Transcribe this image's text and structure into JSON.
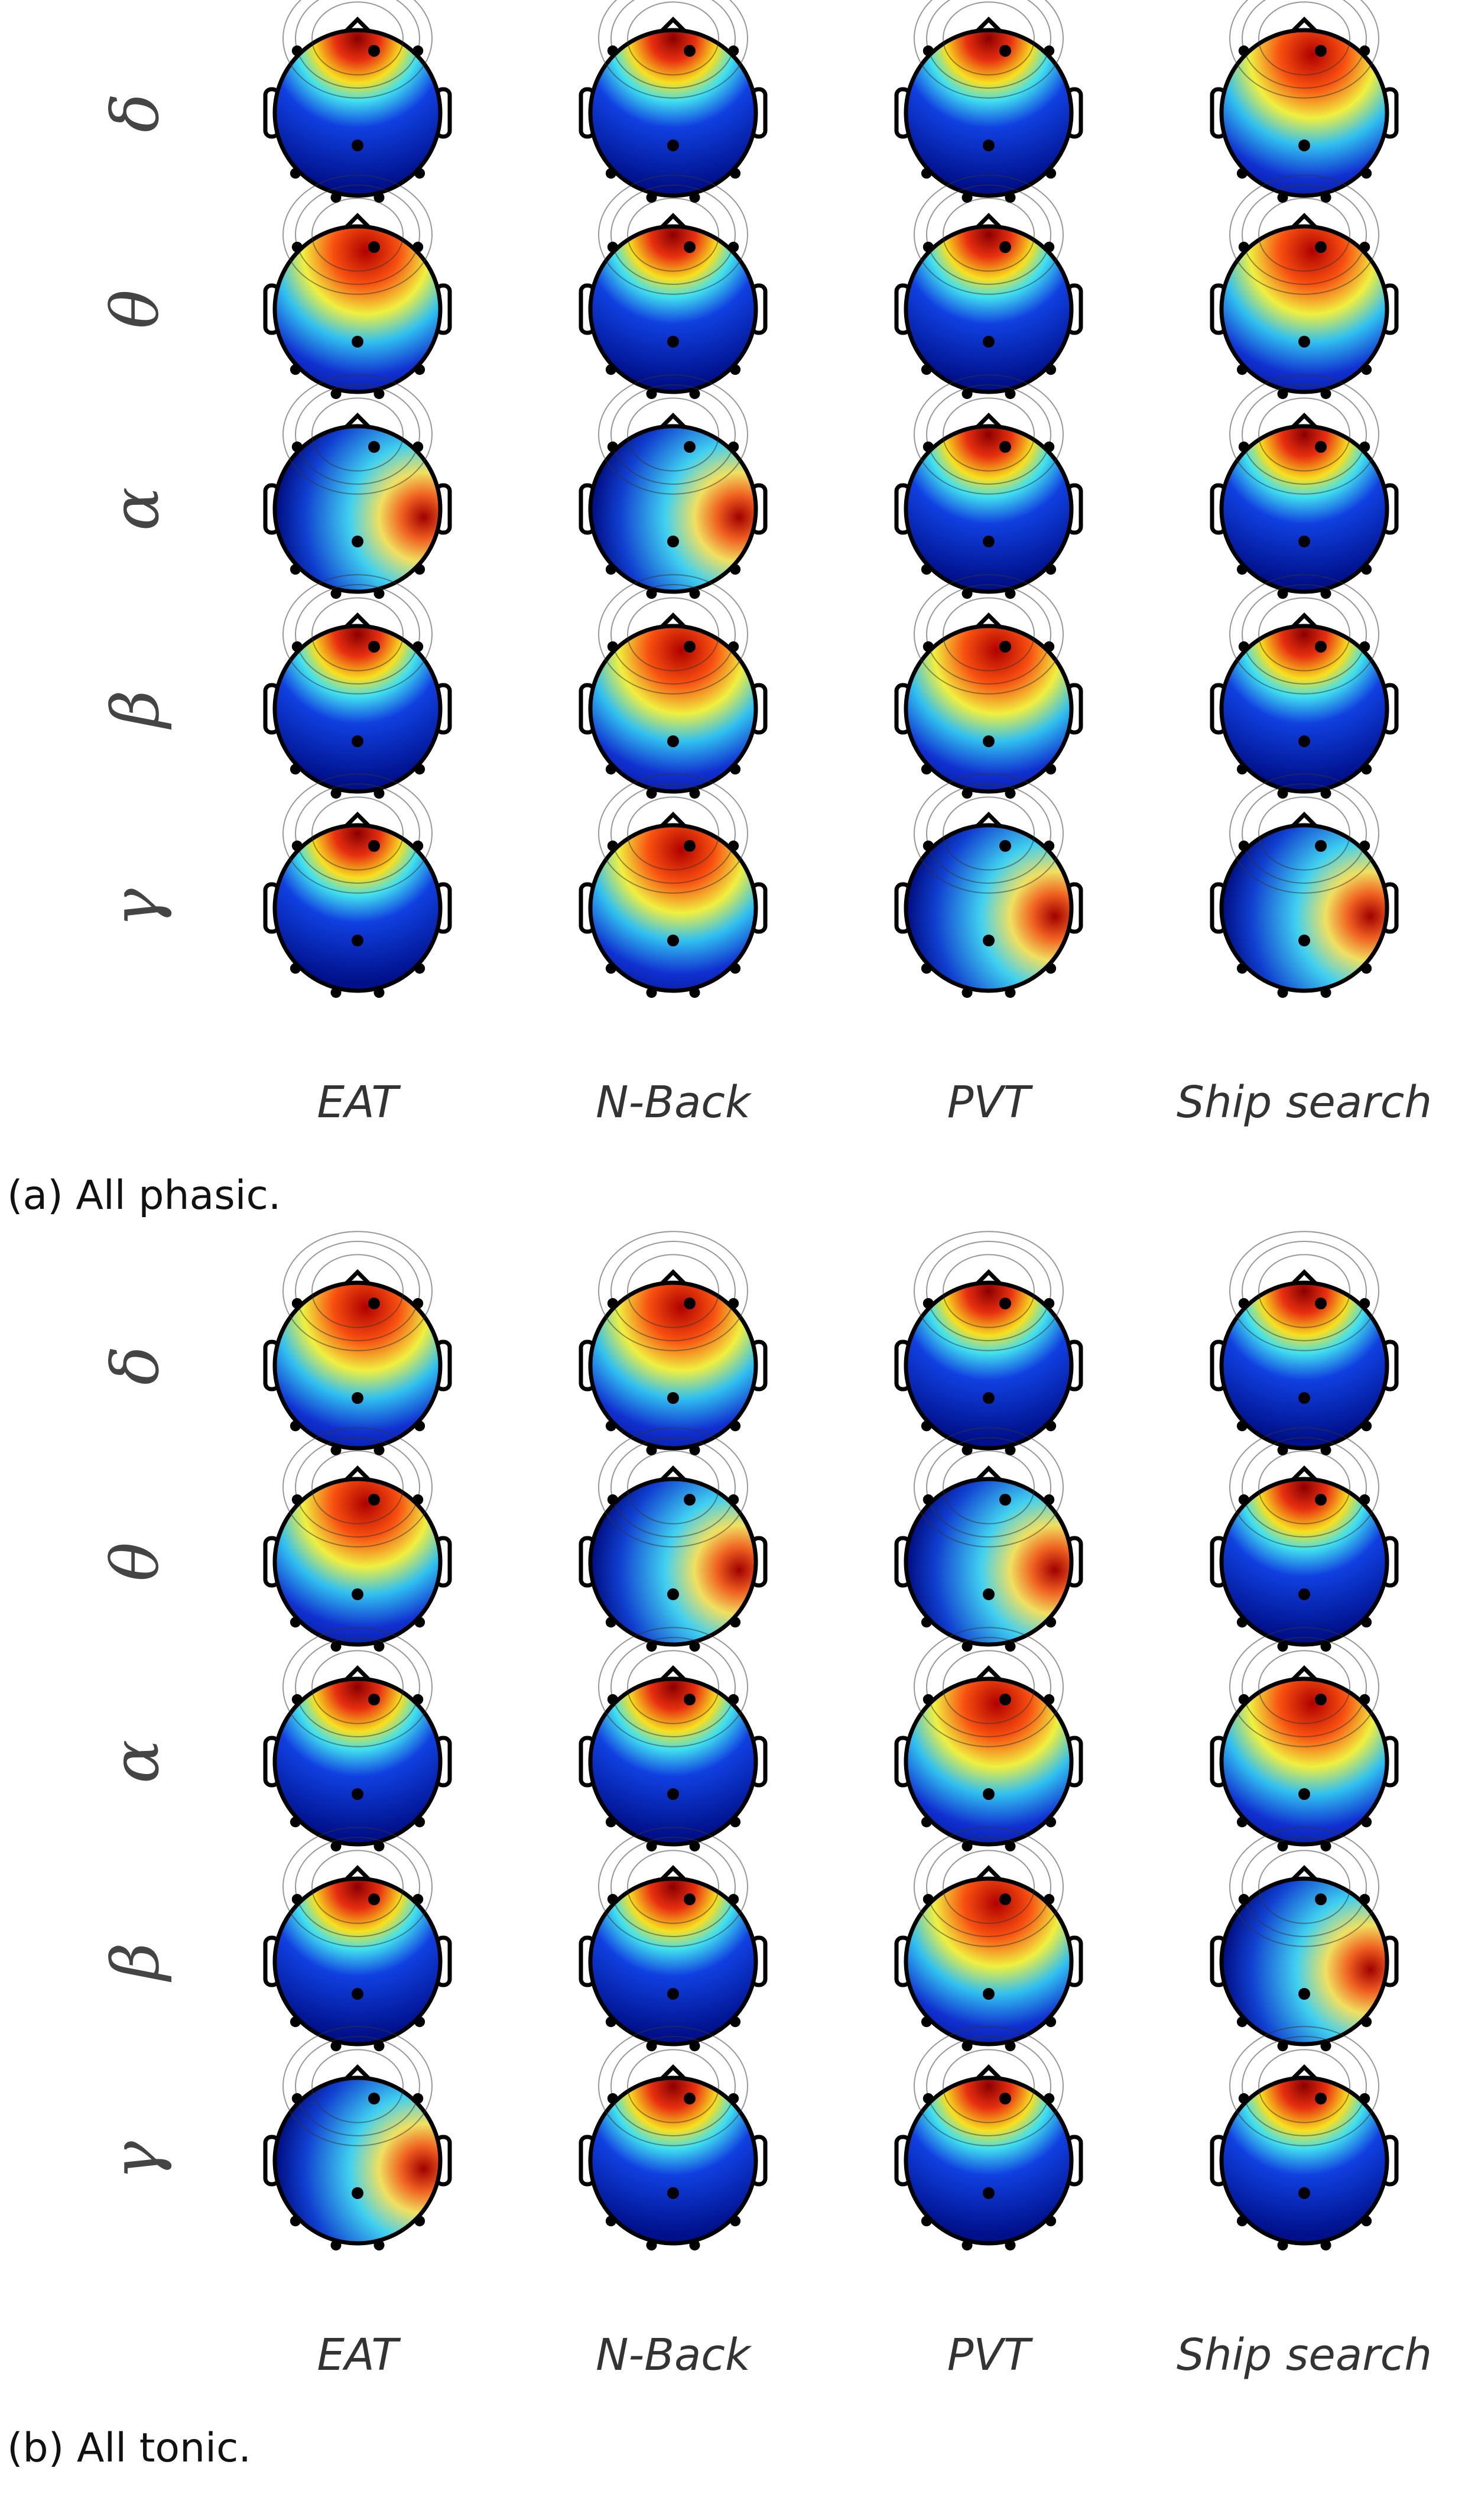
{
  "panels": [
    {
      "rows": [
        "δ",
        "θ",
        "α",
        "β",
        "γ"
      ],
      "columns": [
        "EAT",
        "N-Back",
        "PVT",
        "Ship search"
      ],
      "caption": "(a) All phasic."
    },
    {
      "rows": [
        "δ",
        "θ",
        "α",
        "β",
        "γ"
      ],
      "columns": [
        "EAT",
        "N-Back",
        "PVT",
        "Ship search"
      ],
      "caption": "(b) All tonic."
    }
  ]
}
